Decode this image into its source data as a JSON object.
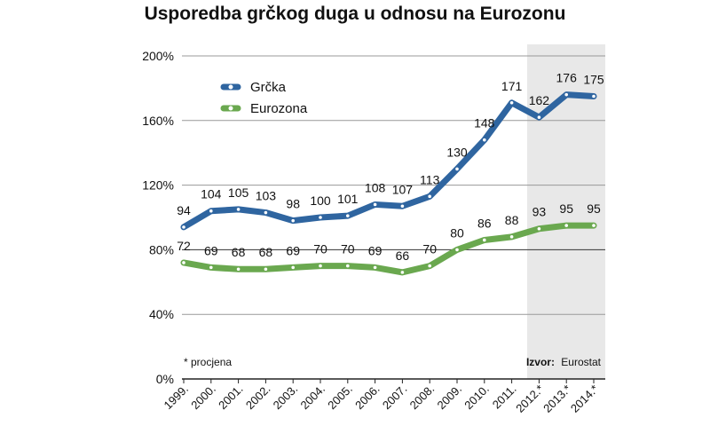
{
  "chart_data": {
    "type": "line",
    "title": "Usporedba grčkog duga u odnosu na Eurozonu",
    "categories": [
      "1999.",
      "2000.",
      "2001.",
      "2002.",
      "2003.",
      "2004.",
      "2005.",
      "2006.",
      "2007.",
      "2008.",
      "2009.",
      "2010.",
      "2011.",
      "2012.*",
      "2013.*",
      "2014.*"
    ],
    "series": [
      {
        "name": "Grčka",
        "color": "#2f65a0",
        "values": [
          94,
          104,
          105,
          103,
          98,
          100,
          101,
          108,
          107,
          113,
          130,
          148,
          171,
          162,
          176,
          175
        ],
        "labels": [
          "94",
          "104",
          "105",
          "103",
          "98",
          "100",
          "101",
          "108",
          "107",
          "113",
          "130",
          "148",
          "171",
          "162",
          "176",
          "175"
        ]
      },
      {
        "name": "Eurozona",
        "color": "#6aa84f",
        "values": [
          72,
          69,
          68,
          68,
          69,
          70,
          70,
          69,
          66,
          70,
          80,
          86,
          88,
          93,
          95,
          95
        ],
        "labels": [
          "72",
          "69",
          "68",
          "68",
          "69",
          "70",
          "70",
          "69",
          "66",
          "70",
          "80",
          "86",
          "88",
          "93",
          "95",
          "95"
        ]
      }
    ],
    "ylim": [
      0,
      200
    ],
    "yticks": [
      0,
      40,
      80,
      120,
      160,
      200
    ],
    "ytick_labels": [
      "0%",
      "40%",
      "80%",
      "120%",
      "160%",
      "200%"
    ],
    "grid": true,
    "legend_position": "top-left",
    "estimate_shading_from": "2012.*",
    "footnote": "* procjena",
    "source_label": "Izvor:",
    "source_value": "Eurostat"
  }
}
